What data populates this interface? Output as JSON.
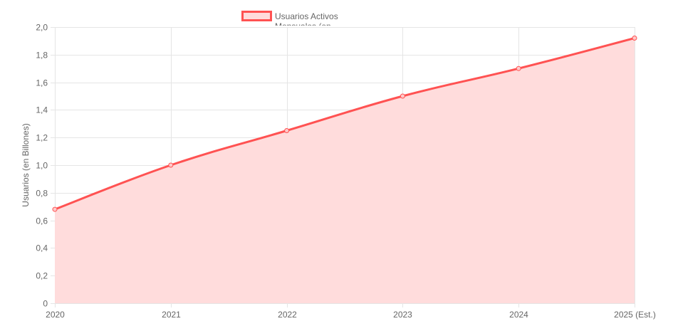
{
  "chart_data": {
    "type": "area",
    "categories": [
      "2020",
      "2021",
      "2022",
      "2023",
      "2024",
      "2025 (Est.)"
    ],
    "series": [
      {
        "name": "Usuarios Activos Mensuales (en",
        "values": [
          0.68,
          1.0,
          1.25,
          1.5,
          1.7,
          1.92
        ]
      }
    ],
    "legend_lines": [
      "Usuarios Activos",
      "Mensuales (en"
    ],
    "ylabel": "Usuarios (en Billones)",
    "xlabel": "",
    "ylim": [
      0,
      2.0
    ],
    "y_ticks": [
      0,
      0.2,
      0.4,
      0.6,
      0.8,
      1.0,
      1.2,
      1.4,
      1.6,
      1.8,
      2.0
    ],
    "y_tick_labels": [
      "0",
      "0,2",
      "0,4",
      "0,6",
      "0,8",
      "1,0",
      "1,2",
      "1,4",
      "1,6",
      "1,8",
      "2,0"
    ],
    "grid": true,
    "legend_position": "top",
    "colors": {
      "line": "#ff5252",
      "fill": "#ffdcdc",
      "grid": "#e5e5e5",
      "text": "#666666"
    }
  }
}
